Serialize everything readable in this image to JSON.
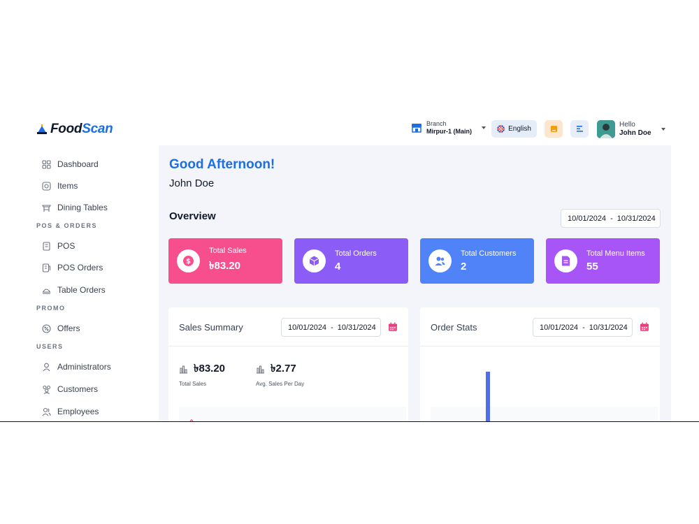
{
  "brand": {
    "name_part1": "Food",
    "name_part2": "Scan"
  },
  "header": {
    "branch_label": "Branch",
    "branch_value": "Mirpur-1 (Main)",
    "language": "English",
    "user_greeting": "Hello",
    "user_name": "John Doe"
  },
  "sidebar": {
    "items": [
      {
        "label": "Dashboard",
        "icon": "grid-icon"
      },
      {
        "label": "Items",
        "icon": "items-icon"
      },
      {
        "label": "Dining Tables",
        "icon": "table-icon"
      }
    ],
    "sections": [
      {
        "title": "POS & ORDERS",
        "items": [
          {
            "label": "POS",
            "icon": "pos-icon"
          },
          {
            "label": "POS Orders",
            "icon": "pos-orders-icon"
          },
          {
            "label": "Table Orders",
            "icon": "table-orders-icon"
          }
        ]
      },
      {
        "title": "PROMO",
        "items": [
          {
            "label": "Offers",
            "icon": "offers-icon"
          }
        ]
      },
      {
        "title": "USERS",
        "items": [
          {
            "label": "Administrators",
            "icon": "admin-icon"
          },
          {
            "label": "Customers",
            "icon": "customers-icon"
          },
          {
            "label": "Employees",
            "icon": "employees-icon"
          }
        ]
      }
    ]
  },
  "main": {
    "greeting": "Good Afternoon!",
    "name": "John Doe",
    "overview_title": "Overview",
    "date_start": "10/01/2024",
    "date_sep": "-",
    "date_end": "10/31/2024",
    "stats": [
      {
        "title": "Total Sales",
        "value": "৳83.20",
        "color": "#f74f8e"
      },
      {
        "title": "Total Orders",
        "value": "4",
        "color": "#8b5cf6"
      },
      {
        "title": "Total Customers",
        "value": "2",
        "color": "#4f83f7"
      },
      {
        "title": "Total Menu Items",
        "value": "55",
        "color": "#a855f7"
      }
    ],
    "sales_summary": {
      "title": "Sales Summary",
      "total_sales_value": "৳83.20",
      "total_sales_label": "Total Sales",
      "avg_value": "৳2.77",
      "avg_label": "Avg. Sales Per Day"
    },
    "order_stats": {
      "title": "Order Stats"
    }
  }
}
